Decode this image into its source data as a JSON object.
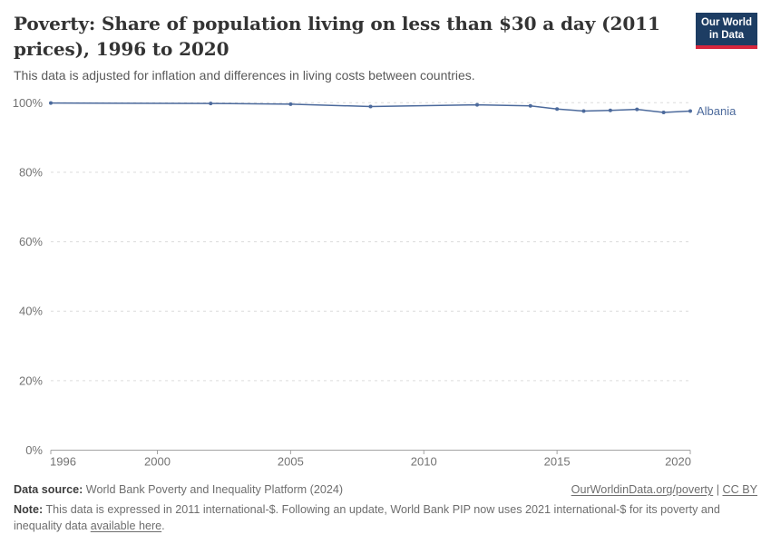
{
  "header": {
    "title": "Poverty: Share of population living on less than $30 a day (2011 prices), 1996 to 2020",
    "subtitle": "This data is adjusted for inflation and differences in living costs between countries.",
    "logo": {
      "line1": "Our World",
      "line2": "in Data",
      "bg_color": "#1d3d63",
      "accent_color": "#d7263d"
    }
  },
  "chart_data": {
    "type": "line",
    "title": "Poverty: Share of population living on less than $30 a day (2011 prices), 1996 to 2020",
    "x": [
      1996,
      2002,
      2005,
      2008,
      2012,
      2014,
      2015,
      2016,
      2017,
      2018,
      2019,
      2020
    ],
    "series": [
      {
        "name": "Albania",
        "color": "#4c6a9c",
        "values": [
          99.9,
          99.8,
          99.6,
          98.9,
          99.4,
          99.1,
          98.2,
          97.6,
          97.8,
          98.1,
          97.2,
          97.6
        ]
      }
    ],
    "xlabel": "",
    "ylabel": "",
    "x_ticks": [
      1996,
      2000,
      2005,
      2010,
      2015,
      2020
    ],
    "y_ticks": [
      0,
      20,
      40,
      60,
      80,
      100
    ],
    "y_suffix": "%",
    "xlim": [
      1996,
      2020
    ],
    "ylim": [
      0,
      100
    ],
    "grid": "horizontal-dashed",
    "legend": "line-end-label",
    "colors": {
      "gridline": "#dcdcdc",
      "axis": "#a3a3a3",
      "tick_text": "#737373"
    }
  },
  "footer": {
    "datasource_label": "Data source:",
    "datasource_text": " World Bank Poverty and Inequality Platform (2024)",
    "rights_link": "OurWorldinData.org/poverty",
    "rights_sep": " | ",
    "rights_license": "CC BY",
    "note_label": "Note:",
    "note_text": " This data is expressed in 2011 international-$. Following an update, World Bank PIP now uses 2021 international-$ for its poverty and inequality data ",
    "note_link": "available here",
    "note_suffix": "."
  }
}
